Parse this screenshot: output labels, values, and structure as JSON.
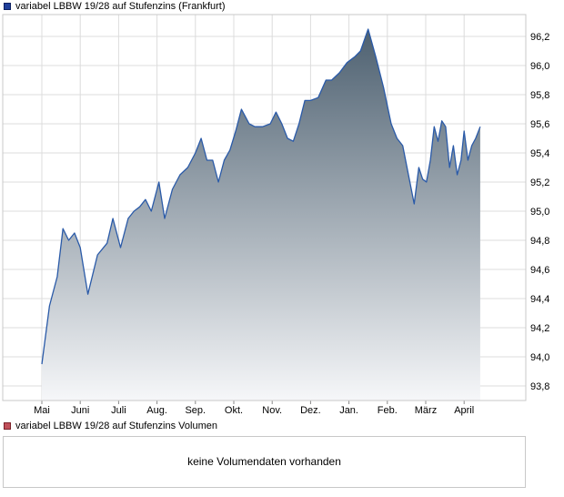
{
  "legend": {
    "price_label": "variabel LBBW 19/28 auf Stufenzins (Frankfurt)",
    "volume_label": "variabel LBBW 19/28 auf Stufenzins Volumen",
    "price_color": "#1f3f9a",
    "volume_color": "#c0505a"
  },
  "volume": {
    "message": "keine Volumendaten vorhanden"
  },
  "colors": {
    "line": "#2a5aa8",
    "fill_top": "#4d6070",
    "fill_bottom": "#f6f7f9",
    "grid": "#dcdcdc"
  },
  "chart_data": {
    "type": "area",
    "title": "variabel LBBW 19/28 auf Stufenzins (Frankfurt)",
    "xlabel": "",
    "ylabel": "",
    "ylim": [
      93.7,
      96.35
    ],
    "yticks": [
      93.8,
      94.0,
      94.2,
      94.4,
      94.6,
      94.8,
      95.0,
      95.2,
      95.4,
      95.6,
      95.8,
      96.0,
      96.2
    ],
    "ytick_labels": [
      "93,8",
      "94,0",
      "94,2",
      "94,4",
      "94,6",
      "94,8",
      "95,0",
      "95,2",
      "95,4",
      "95,6",
      "95,8",
      "96,0",
      "96,2"
    ],
    "xticks": [
      "Mai",
      "Juni",
      "Juli",
      "Aug.",
      "Sep.",
      "Okt.",
      "Nov.",
      "Dez.",
      "Jan.",
      "Feb.",
      "März",
      "April"
    ],
    "grid": true,
    "series": [
      {
        "name": "variabel LBBW 19/28 auf Stufenzins (Frankfurt)",
        "x": [
          0,
          0.2,
          0.4,
          0.55,
          0.7,
          0.85,
          1.0,
          1.2,
          1.45,
          1.7,
          1.85,
          2.05,
          2.25,
          2.4,
          2.55,
          2.7,
          2.85,
          3.05,
          3.2,
          3.4,
          3.6,
          3.8,
          4.0,
          4.15,
          4.3,
          4.45,
          4.6,
          4.75,
          4.9,
          5.05,
          5.2,
          5.4,
          5.55,
          5.75,
          5.95,
          6.1,
          6.25,
          6.4,
          6.55,
          6.7,
          6.85,
          7.0,
          7.2,
          7.4,
          7.55,
          7.75,
          7.95,
          8.15,
          8.3,
          8.5,
          8.7,
          8.9,
          9.1,
          9.25,
          9.4,
          9.55,
          9.7,
          9.82,
          9.92,
          10.02,
          10.12,
          10.22,
          10.32,
          10.42,
          10.52,
          10.62,
          10.72,
          10.82,
          10.92,
          11.0,
          11.1,
          11.2,
          11.3,
          11.42
        ],
        "y": [
          93.95,
          94.35,
          94.55,
          94.88,
          94.8,
          94.85,
          94.75,
          94.43,
          94.7,
          94.78,
          94.95,
          94.75,
          94.95,
          95.0,
          95.03,
          95.08,
          95.0,
          95.2,
          94.95,
          95.15,
          95.25,
          95.3,
          95.4,
          95.5,
          95.35,
          95.35,
          95.2,
          95.35,
          95.42,
          95.55,
          95.7,
          95.6,
          95.58,
          95.58,
          95.6,
          95.68,
          95.6,
          95.5,
          95.48,
          95.6,
          95.76,
          95.76,
          95.78,
          95.9,
          95.9,
          95.95,
          96.02,
          96.06,
          96.1,
          96.25,
          96.06,
          95.85,
          95.6,
          95.5,
          95.45,
          95.25,
          95.05,
          95.3,
          95.22,
          95.2,
          95.35,
          95.58,
          95.48,
          95.62,
          95.58,
          95.3,
          95.45,
          95.25,
          95.35,
          95.55,
          95.35,
          95.45,
          95.5,
          95.58
        ]
      }
    ]
  }
}
